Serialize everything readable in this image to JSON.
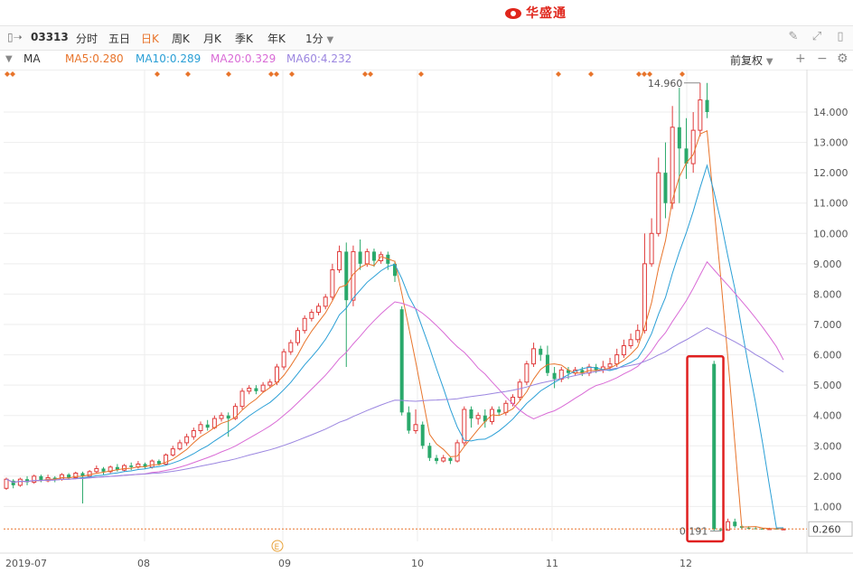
{
  "brand": {
    "name": "华盛通"
  },
  "toolbar": {
    "code": "03313",
    "tabs": [
      "分时",
      "五日",
      "日K",
      "周K",
      "月K",
      "季K",
      "年K"
    ],
    "active_tab": "日K",
    "interval": "1分"
  },
  "ma": {
    "label": "MA",
    "items": [
      {
        "label": "MA5:0.280",
        "color": "#e8742b"
      },
      {
        "label": "MA10:0.289",
        "color": "#2a9fd6"
      },
      {
        "label": "MA20:0.329",
        "color": "#d96bd6"
      },
      {
        "label": "MA60:4.232",
        "color": "#9b86e0"
      }
    ],
    "adjust": "前复权"
  },
  "chart_data": {
    "type": "candlestick",
    "x_labels": [
      "2019-07",
      "08",
      "09",
      "10",
      "11",
      "12"
    ],
    "y_ticks": [
      "14.000",
      "13.000",
      "12.000",
      "11.000",
      "10.000",
      "9.000",
      "8.000",
      "7.000",
      "6.000",
      "5.000",
      "4.000",
      "3.000",
      "2.000",
      "1.000"
    ],
    "ylim": [
      0,
      15
    ],
    "high_label": "14.960",
    "low_label": "0.191",
    "last_price": "0.260",
    "event_marker": "E",
    "candles": [
      [
        1.6,
        1.9,
        1.55,
        1.95
      ],
      [
        1.85,
        1.7,
        1.6,
        1.9
      ],
      [
        1.7,
        1.9,
        1.65,
        1.95
      ],
      [
        1.9,
        1.8,
        1.7,
        2.0
      ],
      [
        1.8,
        2.0,
        1.75,
        2.05
      ],
      [
        2.0,
        1.85,
        1.8,
        2.05
      ],
      [
        1.85,
        1.95,
        1.8,
        2.05
      ],
      [
        1.95,
        1.9,
        1.8,
        2.0
      ],
      [
        1.9,
        2.05,
        1.85,
        2.1
      ],
      [
        2.05,
        1.95,
        1.9,
        2.1
      ],
      [
        1.95,
        2.1,
        1.9,
        2.15
      ],
      [
        2.1,
        2.0,
        1.1,
        2.15
      ],
      [
        2.0,
        2.15,
        1.95,
        2.2
      ],
      [
        2.15,
        2.25,
        2.1,
        2.35
      ],
      [
        2.25,
        2.15,
        2.05,
        2.3
      ],
      [
        2.15,
        2.3,
        2.1,
        2.35
      ],
      [
        2.3,
        2.2,
        2.15,
        2.4
      ],
      [
        2.2,
        2.35,
        2.15,
        2.4
      ],
      [
        2.35,
        2.3,
        2.2,
        2.45
      ],
      [
        2.3,
        2.4,
        2.25,
        2.5
      ],
      [
        2.4,
        2.3,
        2.25,
        2.45
      ],
      [
        2.3,
        2.5,
        2.25,
        2.55
      ],
      [
        2.5,
        2.4,
        2.35,
        2.55
      ],
      [
        2.4,
        2.7,
        2.35,
        2.75
      ],
      [
        2.7,
        2.9,
        2.65,
        3.0
      ],
      [
        2.9,
        3.1,
        2.85,
        3.2
      ],
      [
        3.1,
        3.3,
        3.0,
        3.4
      ],
      [
        3.3,
        3.5,
        3.2,
        3.6
      ],
      [
        3.5,
        3.7,
        3.4,
        3.8
      ],
      [
        3.7,
        3.6,
        3.5,
        3.85
      ],
      [
        3.6,
        3.9,
        3.55,
        4.0
      ],
      [
        3.9,
        4.0,
        3.8,
        4.1
      ],
      [
        4.0,
        3.9,
        3.3,
        4.1
      ],
      [
        3.9,
        4.3,
        3.85,
        4.4
      ],
      [
        4.3,
        4.8,
        4.2,
        4.9
      ],
      [
        4.8,
        4.9,
        4.7,
        5.0
      ],
      [
        4.9,
        4.8,
        4.7,
        5.0
      ],
      [
        4.8,
        5.0,
        4.75,
        5.1
      ],
      [
        5.0,
        5.1,
        4.9,
        5.2
      ],
      [
        5.1,
        5.6,
        5.0,
        5.7
      ],
      [
        5.6,
        6.1,
        5.5,
        6.2
      ],
      [
        6.1,
        6.4,
        6.0,
        6.5
      ],
      [
        6.4,
        6.8,
        6.3,
        6.9
      ],
      [
        6.8,
        7.2,
        6.7,
        7.3
      ],
      [
        7.2,
        7.4,
        7.1,
        7.5
      ],
      [
        7.4,
        7.6,
        7.3,
        7.7
      ],
      [
        7.6,
        7.9,
        7.5,
        8.0
      ],
      [
        7.9,
        8.8,
        7.8,
        9.0
      ],
      [
        8.8,
        9.4,
        8.7,
        9.6
      ],
      [
        9.4,
        7.8,
        5.6,
        9.7
      ],
      [
        7.8,
        9.4,
        7.6,
        9.6
      ],
      [
        9.4,
        9.0,
        8.8,
        9.8
      ],
      [
        9.0,
        9.4,
        8.9,
        9.5
      ],
      [
        9.4,
        9.1,
        8.9,
        9.5
      ],
      [
        9.1,
        9.3,
        9.0,
        9.4
      ],
      [
        9.3,
        9.0,
        8.8,
        9.4
      ],
      [
        9.0,
        8.6,
        8.4,
        9.1
      ],
      [
        7.5,
        4.1,
        4.0,
        7.6
      ],
      [
        4.1,
        3.5,
        3.4,
        4.3
      ],
      [
        3.5,
        3.7,
        3.4,
        4.2
      ],
      [
        3.7,
        3.0,
        2.9,
        3.8
      ],
      [
        3.0,
        2.6,
        2.5,
        3.1
      ],
      [
        2.6,
        2.5,
        2.4,
        2.7
      ],
      [
        2.5,
        2.6,
        2.45,
        2.7
      ],
      [
        2.6,
        2.5,
        2.4,
        2.65
      ],
      [
        2.5,
        3.1,
        2.45,
        3.2
      ],
      [
        3.1,
        4.2,
        3.0,
        4.3
      ],
      [
        4.2,
        3.9,
        3.6,
        4.3
      ],
      [
        3.9,
        4.0,
        3.7,
        4.1
      ],
      [
        4.0,
        3.8,
        3.6,
        4.2
      ],
      [
        3.8,
        4.2,
        3.7,
        4.3
      ],
      [
        4.2,
        4.1,
        4.0,
        4.3
      ],
      [
        4.1,
        4.4,
        4.0,
        4.5
      ],
      [
        4.4,
        4.6,
        4.3,
        4.7
      ],
      [
        4.6,
        5.1,
        4.5,
        5.2
      ],
      [
        5.1,
        5.7,
        5.0,
        5.8
      ],
      [
        5.7,
        6.2,
        5.6,
        6.4
      ],
      [
        6.2,
        6.0,
        5.8,
        6.3
      ],
      [
        6.0,
        5.4,
        5.3,
        6.3
      ],
      [
        5.4,
        5.2,
        4.9,
        5.6
      ],
      [
        5.2,
        5.5,
        5.1,
        5.6
      ],
      [
        5.5,
        5.4,
        5.2,
        5.6
      ],
      [
        5.4,
        5.5,
        5.3,
        5.6
      ],
      [
        5.5,
        5.4,
        5.3,
        5.6
      ],
      [
        5.4,
        5.6,
        5.3,
        5.7
      ],
      [
        5.6,
        5.5,
        5.4,
        5.7
      ],
      [
        5.5,
        5.6,
        5.4,
        5.8
      ],
      [
        5.6,
        5.7,
        5.5,
        5.9
      ],
      [
        5.7,
        6.0,
        5.6,
        6.2
      ],
      [
        6.0,
        6.3,
        5.9,
        6.5
      ],
      [
        6.3,
        6.5,
        6.2,
        6.7
      ],
      [
        6.5,
        6.8,
        6.4,
        7.0
      ],
      [
        6.8,
        9.0,
        6.7,
        10.0
      ],
      [
        9.0,
        10.0,
        8.9,
        10.5
      ],
      [
        10.0,
        12.0,
        9.9,
        12.5
      ],
      [
        12.0,
        11.0,
        10.5,
        13.0
      ],
      [
        11.0,
        13.5,
        10.8,
        14.2
      ],
      [
        13.5,
        12.8,
        11.0,
        14.8
      ],
      [
        12.8,
        12.3,
        11.8,
        13.8
      ],
      [
        12.3,
        13.4,
        12.0,
        14.0
      ],
      [
        13.4,
        14.4,
        13.2,
        14.96
      ],
      [
        14.4,
        14.0,
        13.8,
        14.96
      ],
      [
        5.7,
        0.25,
        0.2,
        5.8
      ],
      [
        0.25,
        0.22,
        0.191,
        0.3
      ],
      [
        0.22,
        0.5,
        0.2,
        0.6
      ],
      [
        0.5,
        0.35,
        0.3,
        0.6
      ],
      [
        0.35,
        0.3,
        0.26,
        0.4
      ],
      [
        0.3,
        0.28,
        0.25,
        0.35
      ],
      [
        0.28,
        0.27,
        0.25,
        0.32
      ],
      [
        0.27,
        0.26,
        0.24,
        0.3
      ],
      [
        0.26,
        0.27,
        0.24,
        0.3
      ],
      [
        0.27,
        0.26,
        0.24,
        0.29
      ],
      [
        0.26,
        0.26,
        0.24,
        0.28
      ]
    ]
  }
}
